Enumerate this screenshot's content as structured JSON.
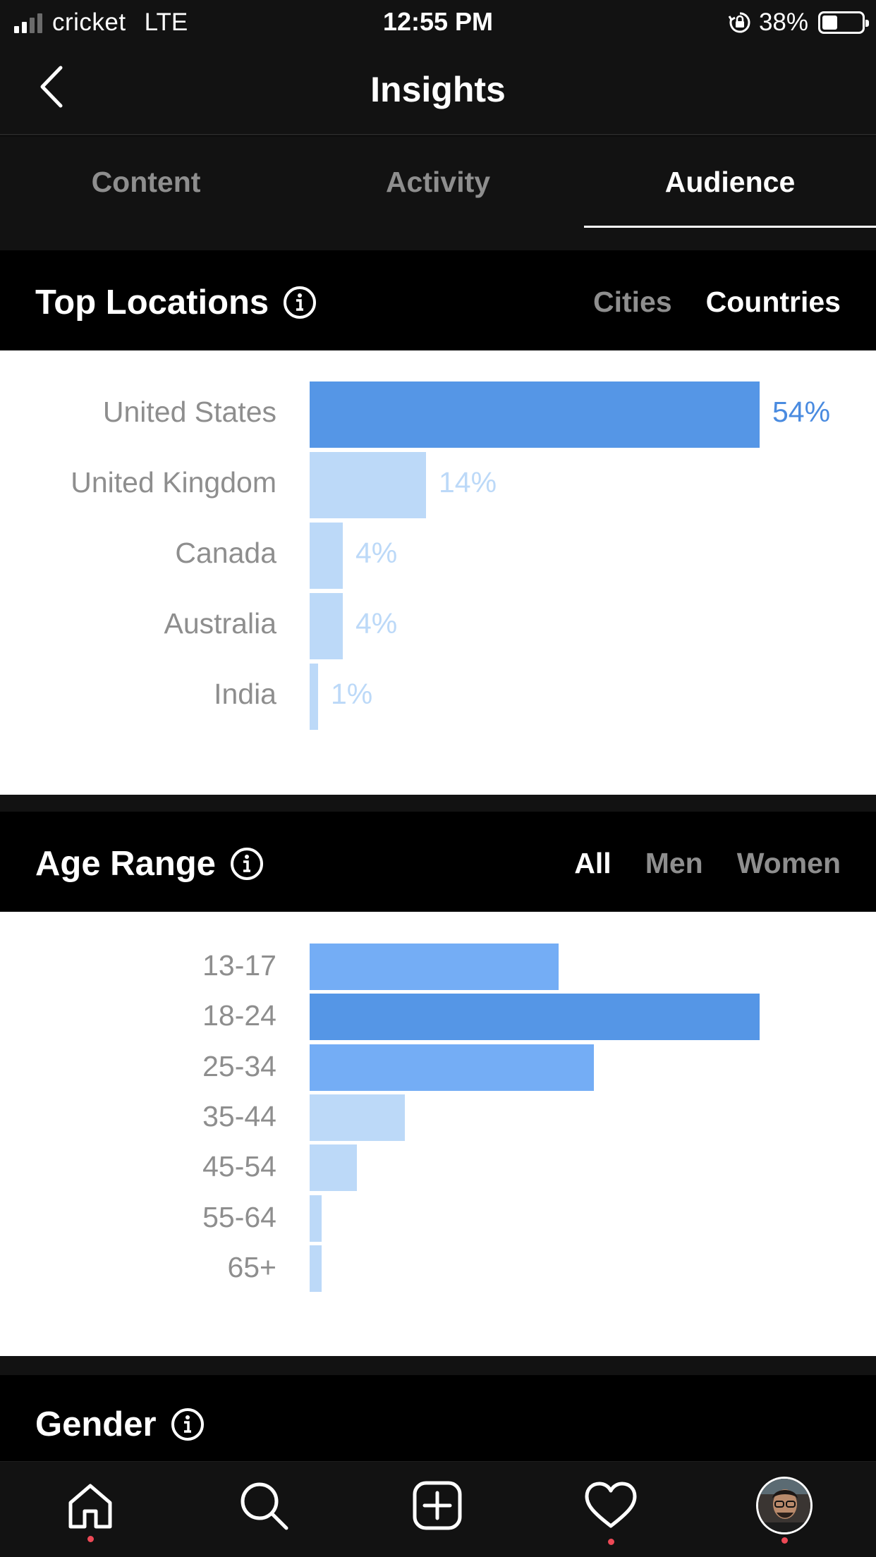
{
  "status_bar": {
    "carrier": "cricket",
    "network": "LTE",
    "time": "12:55 PM",
    "battery_percent": "38%",
    "battery_level": 0.38
  },
  "header": {
    "title": "Insights"
  },
  "tabs": [
    {
      "label": "Content",
      "active": false
    },
    {
      "label": "Activity",
      "active": false
    },
    {
      "label": "Audience",
      "active": true
    }
  ],
  "top_locations": {
    "title": "Top Locations",
    "filters": [
      {
        "label": "Cities",
        "active": false
      },
      {
        "label": "Countries",
        "active": true
      }
    ],
    "rows": [
      {
        "label": "United States",
        "value": 54,
        "pct_label": "54%",
        "highlight": true
      },
      {
        "label": "United Kingdom",
        "value": 14,
        "pct_label": "14%",
        "highlight": false
      },
      {
        "label": "Canada",
        "value": 4,
        "pct_label": "4%",
        "highlight": false
      },
      {
        "label": "Australia",
        "value": 4,
        "pct_label": "4%",
        "highlight": false
      },
      {
        "label": "India",
        "value": 1,
        "pct_label": "1%",
        "highlight": false
      }
    ]
  },
  "age_range": {
    "title": "Age Range",
    "filters": [
      {
        "label": "All",
        "active": true
      },
      {
        "label": "Men",
        "active": false
      },
      {
        "label": "Women",
        "active": false
      }
    ],
    "rows": [
      {
        "label": "13-17",
        "value": 0.553,
        "shade": "mid"
      },
      {
        "label": "18-24",
        "value": 1.0,
        "shade": "dark"
      },
      {
        "label": "25-34",
        "value": 0.632,
        "shade": "mid"
      },
      {
        "label": "35-44",
        "value": 0.211,
        "shade": "light"
      },
      {
        "label": "45-54",
        "value": 0.105,
        "shade": "light"
      },
      {
        "label": "55-64",
        "value": 0.026,
        "shade": "light"
      },
      {
        "label": "65+",
        "value": 0.026,
        "shade": "light"
      }
    ]
  },
  "gender": {
    "title": "Gender"
  },
  "colors": {
    "bar_dark": "#5596e6",
    "bar_mid": "#74adf5",
    "bar_light": "#bcd9f8",
    "pct_dark": "#4a8be0",
    "pct_light": "#bcd9f8",
    "notification_dot": "#ed4956"
  },
  "bottom_nav": [
    {
      "icon": "home-icon",
      "dot": true
    },
    {
      "icon": "search-icon",
      "dot": false
    },
    {
      "icon": "new-post-icon",
      "dot": false
    },
    {
      "icon": "activity-heart-icon",
      "dot": true
    },
    {
      "icon": "profile-avatar",
      "dot": true
    }
  ]
}
